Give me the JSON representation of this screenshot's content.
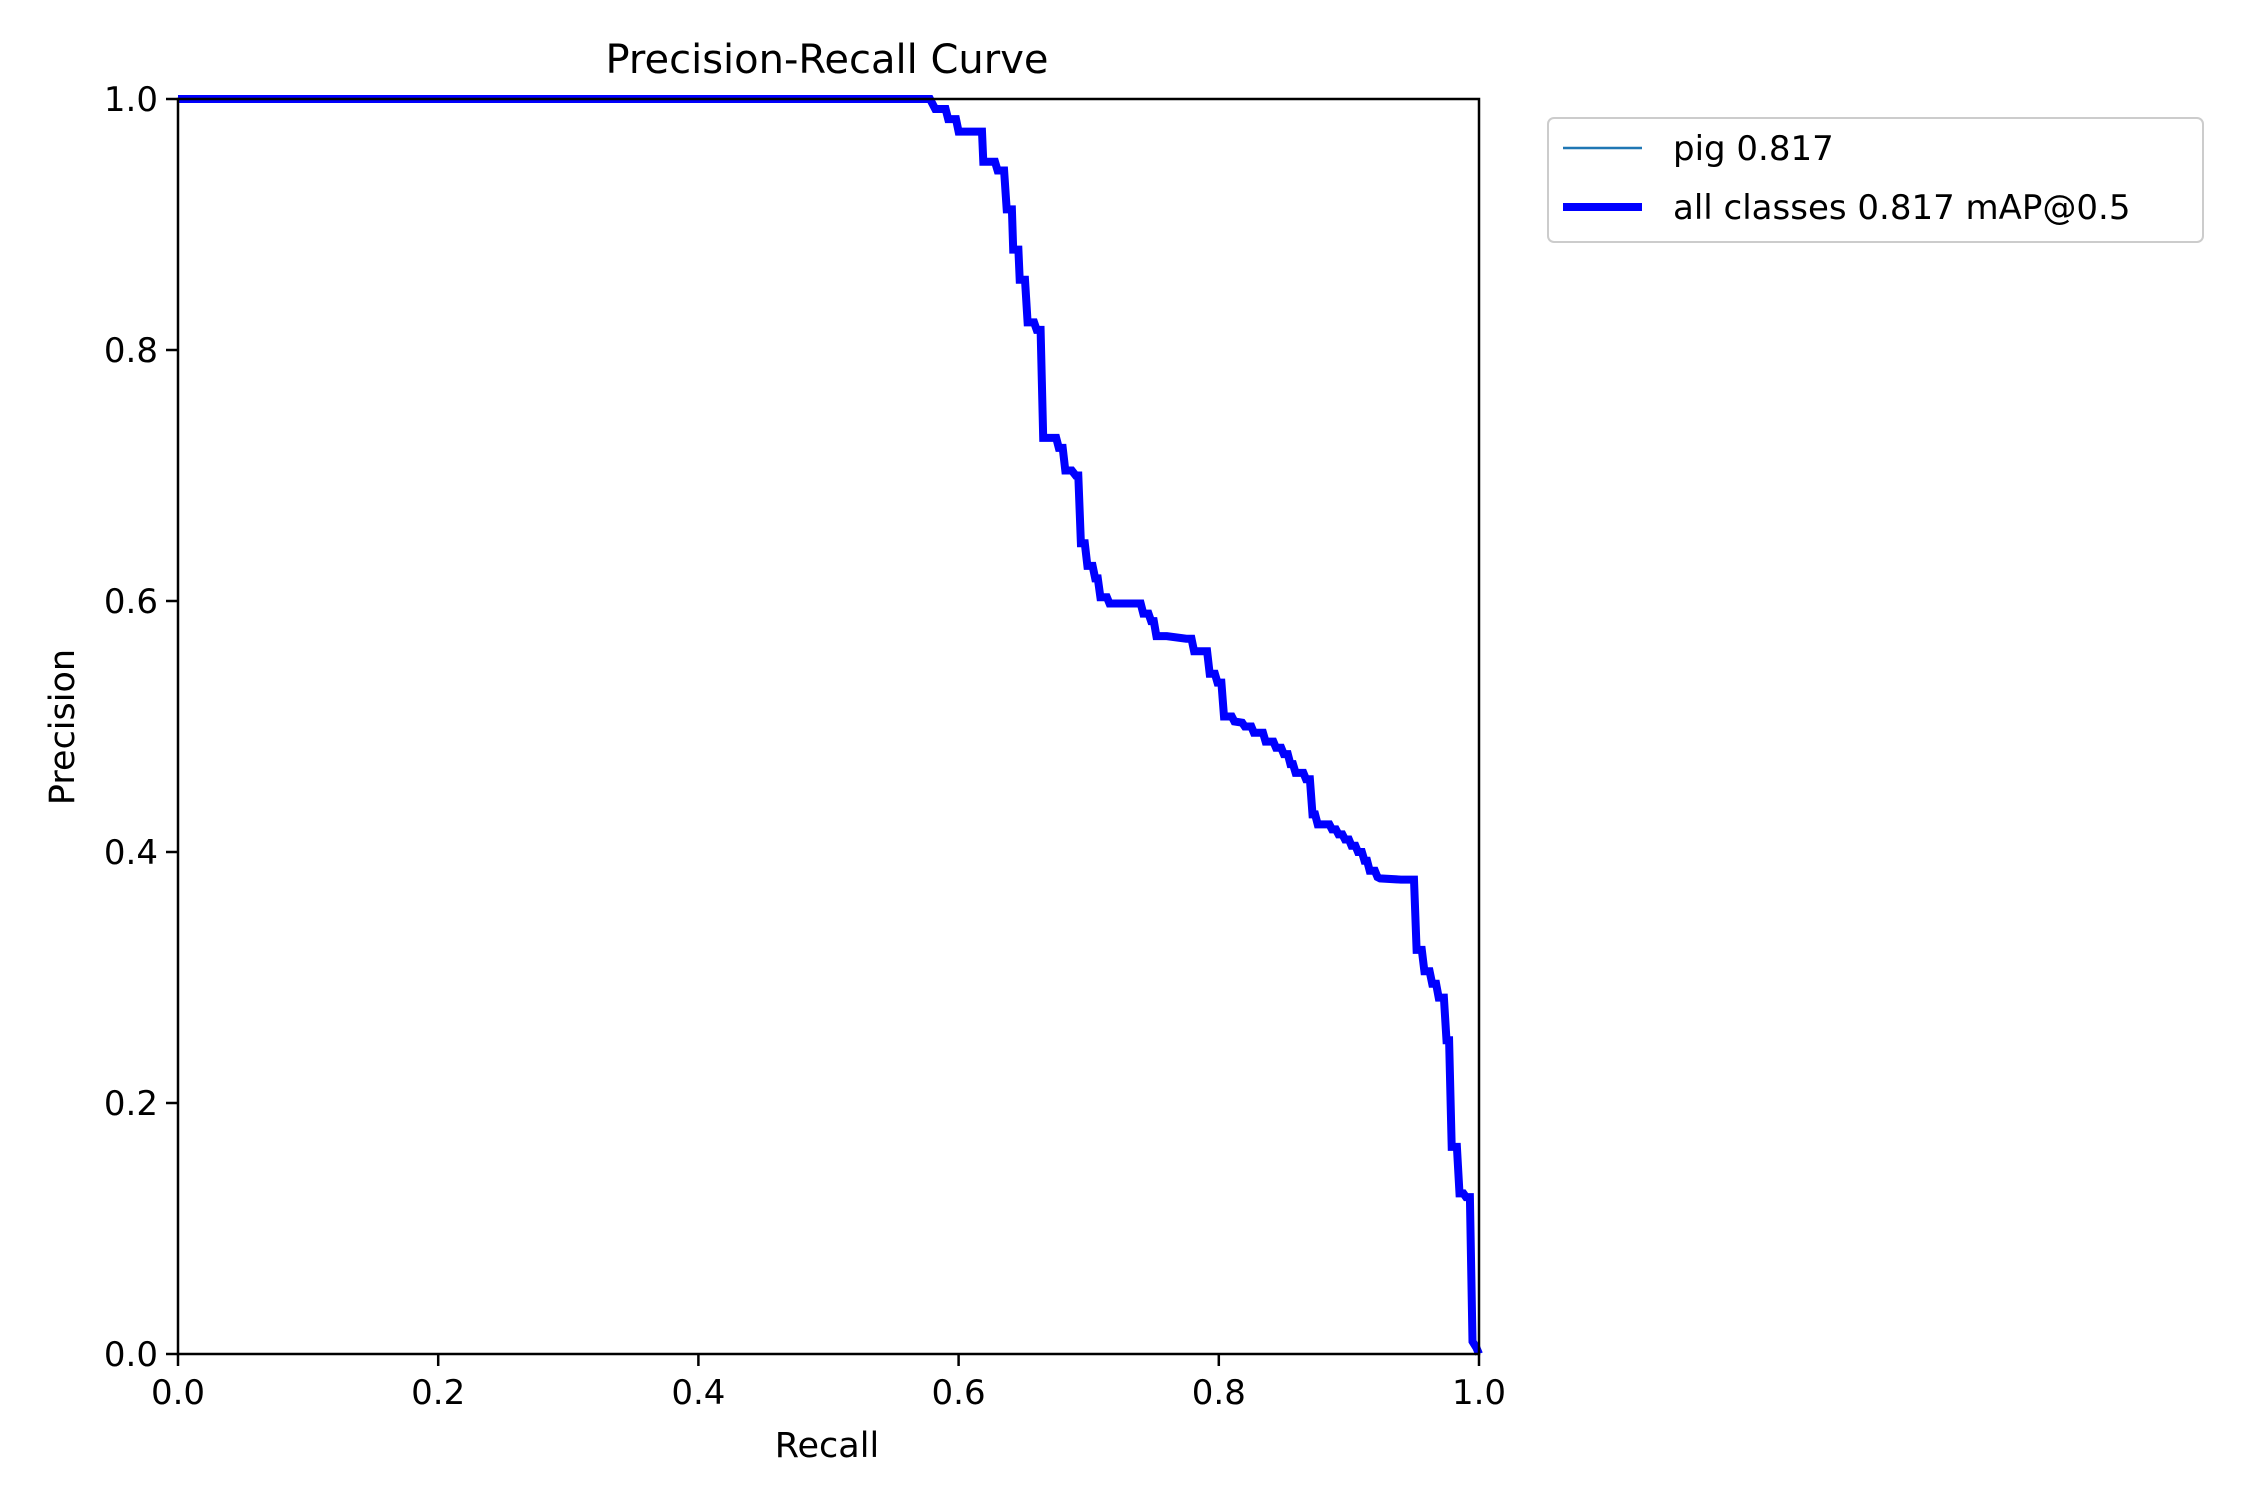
{
  "chart_data": {
    "type": "line",
    "title": "Precision-Recall Curve",
    "xlabel": "Recall",
    "ylabel": "Precision",
    "xlim": [
      0,
      1
    ],
    "ylim": [
      0,
      1
    ],
    "x_ticks": [
      "0.0",
      "0.2",
      "0.4",
      "0.6",
      "0.8",
      "1.0"
    ],
    "y_ticks": [
      "0.0",
      "0.2",
      "0.4",
      "0.6",
      "0.8",
      "1.0"
    ],
    "grid": false,
    "legend_position": "outside top-right",
    "series": [
      {
        "name": "pig 0.817",
        "color": "#1f77b4",
        "style": "thin",
        "points": [
          [
            0.0,
            1.0
          ],
          [
            0.578,
            1.0
          ],
          [
            0.582,
            0.992
          ],
          [
            0.59,
            0.992
          ],
          [
            0.592,
            0.984
          ],
          [
            0.598,
            0.984
          ],
          [
            0.6,
            0.974
          ],
          [
            0.618,
            0.974
          ],
          [
            0.619,
            0.95
          ],
          [
            0.628,
            0.95
          ],
          [
            0.63,
            0.943
          ],
          [
            0.635,
            0.943
          ],
          [
            0.637,
            0.912
          ],
          [
            0.641,
            0.912
          ],
          [
            0.642,
            0.88
          ],
          [
            0.646,
            0.88
          ],
          [
            0.647,
            0.856
          ],
          [
            0.651,
            0.856
          ],
          [
            0.653,
            0.822
          ],
          [
            0.658,
            0.822
          ],
          [
            0.66,
            0.816
          ],
          [
            0.663,
            0.816
          ],
          [
            0.665,
            0.73
          ],
          [
            0.675,
            0.73
          ],
          [
            0.677,
            0.722
          ],
          [
            0.68,
            0.722
          ],
          [
            0.682,
            0.704
          ],
          [
            0.687,
            0.704
          ],
          [
            0.69,
            0.7
          ],
          [
            0.692,
            0.7
          ],
          [
            0.694,
            0.646
          ],
          [
            0.697,
            0.646
          ],
          [
            0.699,
            0.628
          ],
          [
            0.703,
            0.628
          ],
          [
            0.705,
            0.618
          ],
          [
            0.707,
            0.618
          ],
          [
            0.709,
            0.603
          ],
          [
            0.714,
            0.603
          ],
          [
            0.716,
            0.598
          ],
          [
            0.74,
            0.598
          ],
          [
            0.742,
            0.59
          ],
          [
            0.746,
            0.59
          ],
          [
            0.748,
            0.584
          ],
          [
            0.75,
            0.584
          ],
          [
            0.752,
            0.572
          ],
          [
            0.76,
            0.572
          ],
          [
            0.775,
            0.57
          ],
          [
            0.779,
            0.57
          ],
          [
            0.781,
            0.56
          ],
          [
            0.791,
            0.56
          ],
          [
            0.793,
            0.542
          ],
          [
            0.797,
            0.542
          ],
          [
            0.799,
            0.535
          ],
          [
            0.802,
            0.535
          ],
          [
            0.804,
            0.508
          ],
          [
            0.81,
            0.508
          ],
          [
            0.812,
            0.504
          ],
          [
            0.818,
            0.503
          ],
          [
            0.82,
            0.5
          ],
          [
            0.825,
            0.5
          ],
          [
            0.827,
            0.495
          ],
          [
            0.834,
            0.495
          ],
          [
            0.836,
            0.488
          ],
          [
            0.842,
            0.488
          ],
          [
            0.844,
            0.483
          ],
          [
            0.848,
            0.483
          ],
          [
            0.85,
            0.478
          ],
          [
            0.853,
            0.478
          ],
          [
            0.855,
            0.47
          ],
          [
            0.857,
            0.47
          ],
          [
            0.859,
            0.463
          ],
          [
            0.865,
            0.463
          ],
          [
            0.867,
            0.458
          ],
          [
            0.87,
            0.458
          ],
          [
            0.872,
            0.43
          ],
          [
            0.874,
            0.43
          ],
          [
            0.876,
            0.422
          ],
          [
            0.885,
            0.422
          ],
          [
            0.887,
            0.418
          ],
          [
            0.89,
            0.418
          ],
          [
            0.892,
            0.414
          ],
          [
            0.895,
            0.414
          ],
          [
            0.897,
            0.41
          ],
          [
            0.9,
            0.41
          ],
          [
            0.902,
            0.405
          ],
          [
            0.905,
            0.405
          ],
          [
            0.907,
            0.4
          ],
          [
            0.91,
            0.4
          ],
          [
            0.912,
            0.393
          ],
          [
            0.914,
            0.393
          ],
          [
            0.916,
            0.385
          ],
          [
            0.92,
            0.385
          ],
          [
            0.922,
            0.38
          ],
          [
            0.924,
            0.379
          ],
          [
            0.94,
            0.378
          ],
          [
            0.95,
            0.378
          ],
          [
            0.952,
            0.322
          ],
          [
            0.956,
            0.322
          ],
          [
            0.958,
            0.305
          ],
          [
            0.962,
            0.305
          ],
          [
            0.964,
            0.295
          ],
          [
            0.967,
            0.295
          ],
          [
            0.969,
            0.284
          ],
          [
            0.973,
            0.284
          ],
          [
            0.975,
            0.25
          ],
          [
            0.977,
            0.25
          ],
          [
            0.979,
            0.165
          ],
          [
            0.983,
            0.165
          ],
          [
            0.985,
            0.128
          ],
          [
            0.988,
            0.128
          ],
          [
            0.99,
            0.125
          ],
          [
            0.993,
            0.125
          ],
          [
            0.995,
            0.01
          ],
          [
            0.998,
            0.005
          ],
          [
            1.0,
            0.0
          ]
        ]
      },
      {
        "name": "all classes 0.817 mAP@0.5",
        "color": "#0000ff",
        "style": "thick",
        "same_as": "pig 0.817"
      }
    ]
  }
}
